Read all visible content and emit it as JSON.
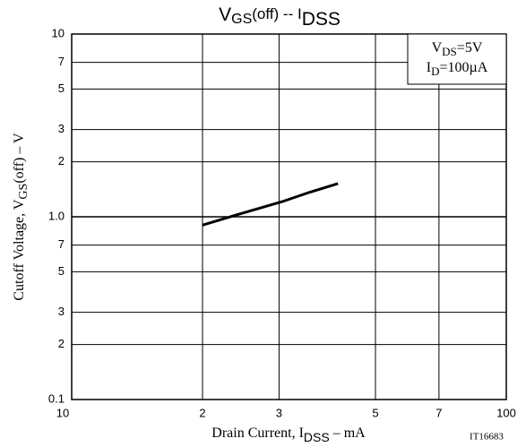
{
  "chart_data": {
    "type": "line",
    "title": [
      "V",
      "GS",
      "(off)  --  I",
      "DSS"
    ],
    "xlabel": [
      "Drain Current, I",
      "DSS",
      "  –  mA"
    ],
    "ylabel": [
      "Cutoff  Voltage, V",
      "GS",
      "(off)  –  V"
    ],
    "annotations": [
      [
        "V",
        "DS",
        "=5V"
      ],
      [
        "I",
        "D",
        "=100µA"
      ]
    ],
    "figure_id": "IT16683",
    "xscale": "log",
    "yscale": "log",
    "grid": true,
    "xlim": [
      10,
      100
    ],
    "ylim": [
      0.1,
      10
    ],
    "xticks": [
      10,
      {
        "value": 20,
        "label": "2"
      },
      {
        "value": 30,
        "label": "3"
      },
      {
        "value": 50,
        "label": "5"
      },
      {
        "value": 70,
        "label": "7"
      },
      100
    ],
    "yticks": [
      0.1,
      {
        "value": 0.2,
        "label": "2"
      },
      {
        "value": 0.3,
        "label": "3"
      },
      {
        "value": 0.5,
        "label": "5"
      },
      {
        "value": 0.7,
        "label": "7"
      },
      {
        "value": 1,
        "label": "1.0"
      },
      2,
      3,
      5,
      7,
      10
    ],
    "series": [
      {
        "color": "#000000",
        "x": [
          20,
          23.5,
          30.5,
          35.2,
          41
        ],
        "values": [
          0.9,
          1.01,
          1.21,
          1.36,
          1.52
        ]
      }
    ]
  }
}
